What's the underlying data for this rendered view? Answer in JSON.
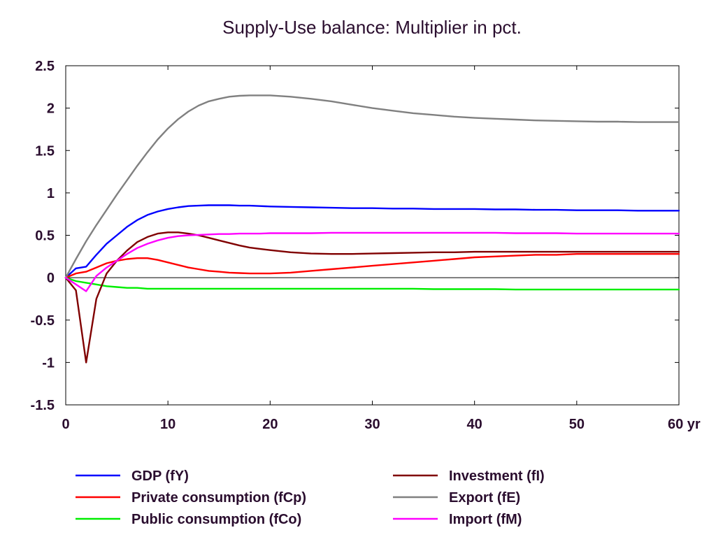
{
  "chart_data": {
    "type": "line",
    "title": "Supply-Use balance: Multiplier in pct.",
    "xlabel": "",
    "ylabel": "",
    "x_unit_suffix": "yr",
    "xlim": [
      0,
      60
    ],
    "ylim": [
      -1.5,
      2.5
    ],
    "xticks": [
      0,
      10,
      20,
      30,
      40,
      50,
      60
    ],
    "xtick_labels": [
      "0",
      "10",
      "20",
      "30",
      "40",
      "50",
      "60 yr"
    ],
    "yticks": [
      2.5,
      2,
      1.5,
      1,
      0.5,
      0,
      -0.5,
      -1,
      -1.5
    ],
    "ytick_labels": [
      "2.5",
      "2",
      "1.5",
      "1",
      "0.5",
      "0",
      "-0.5",
      "-1",
      "-1.5"
    ],
    "zero_line": true,
    "grid": false,
    "legend_position": "bottom",
    "x": [
      0,
      1,
      2,
      3,
      4,
      5,
      6,
      7,
      8,
      9,
      10,
      11,
      12,
      13,
      14,
      15,
      16,
      17,
      18,
      19,
      20,
      22,
      24,
      26,
      28,
      30,
      32,
      34,
      36,
      38,
      40,
      42,
      44,
      46,
      48,
      50,
      52,
      54,
      56,
      58,
      60
    ],
    "series": [
      {
        "name": "GDP (fY)",
        "color": "#0000ff",
        "values": [
          0,
          0.11,
          0.13,
          0.27,
          0.4,
          0.5,
          0.6,
          0.68,
          0.74,
          0.78,
          0.81,
          0.83,
          0.845,
          0.85,
          0.855,
          0.855,
          0.855,
          0.85,
          0.85,
          0.845,
          0.84,
          0.835,
          0.83,
          0.825,
          0.82,
          0.82,
          0.815,
          0.815,
          0.81,
          0.81,
          0.81,
          0.805,
          0.805,
          0.8,
          0.8,
          0.795,
          0.795,
          0.795,
          0.79,
          0.79,
          0.79
        ]
      },
      {
        "name": "Private consumption (fCp)",
        "color": "#ff0000",
        "values": [
          0,
          0.05,
          0.07,
          0.12,
          0.17,
          0.2,
          0.22,
          0.23,
          0.23,
          0.21,
          0.18,
          0.15,
          0.12,
          0.1,
          0.08,
          0.07,
          0.06,
          0.055,
          0.05,
          0.05,
          0.05,
          0.06,
          0.08,
          0.1,
          0.12,
          0.14,
          0.16,
          0.18,
          0.2,
          0.22,
          0.24,
          0.25,
          0.26,
          0.27,
          0.27,
          0.28,
          0.28,
          0.28,
          0.28,
          0.28,
          0.28
        ]
      },
      {
        "name": "Public consumption (fCo)",
        "color": "#00ee00",
        "values": [
          0,
          -0.04,
          -0.06,
          -0.08,
          -0.1,
          -0.11,
          -0.12,
          -0.12,
          -0.13,
          -0.13,
          -0.13,
          -0.13,
          -0.13,
          -0.13,
          -0.13,
          -0.13,
          -0.13,
          -0.13,
          -0.13,
          -0.13,
          -0.13,
          -0.13,
          -0.13,
          -0.13,
          -0.13,
          -0.13,
          -0.13,
          -0.13,
          -0.135,
          -0.135,
          -0.135,
          -0.135,
          -0.14,
          -0.14,
          -0.14,
          -0.14,
          -0.14,
          -0.14,
          -0.14,
          -0.14,
          -0.14
        ]
      },
      {
        "name": "Investment (fI)",
        "color": "#800000",
        "values": [
          0,
          -0.15,
          -1.0,
          -0.25,
          0.05,
          0.2,
          0.32,
          0.42,
          0.48,
          0.52,
          0.535,
          0.535,
          0.52,
          0.5,
          0.47,
          0.44,
          0.41,
          0.38,
          0.355,
          0.34,
          0.325,
          0.3,
          0.285,
          0.28,
          0.28,
          0.285,
          0.29,
          0.295,
          0.3,
          0.3,
          0.305,
          0.305,
          0.305,
          0.305,
          0.305,
          0.305,
          0.305,
          0.305,
          0.305,
          0.305,
          0.305
        ]
      },
      {
        "name": "Export (fE)",
        "color": "#808080",
        "values": [
          0,
          0.22,
          0.43,
          0.62,
          0.8,
          0.98,
          1.15,
          1.32,
          1.48,
          1.63,
          1.76,
          1.87,
          1.96,
          2.03,
          2.08,
          2.11,
          2.135,
          2.145,
          2.15,
          2.15,
          2.15,
          2.135,
          2.11,
          2.08,
          2.04,
          2.0,
          1.97,
          1.94,
          1.92,
          1.9,
          1.885,
          1.875,
          1.865,
          1.855,
          1.85,
          1.845,
          1.84,
          1.84,
          1.835,
          1.835,
          1.835
        ]
      },
      {
        "name": "Import (fM)",
        "color": "#ff00ff",
        "values": [
          0,
          -0.08,
          -0.16,
          0.02,
          0.12,
          0.2,
          0.28,
          0.35,
          0.4,
          0.44,
          0.47,
          0.49,
          0.5,
          0.505,
          0.51,
          0.515,
          0.515,
          0.52,
          0.52,
          0.52,
          0.525,
          0.525,
          0.525,
          0.53,
          0.53,
          0.53,
          0.53,
          0.53,
          0.53,
          0.53,
          0.53,
          0.53,
          0.525,
          0.525,
          0.525,
          0.52,
          0.52,
          0.52,
          0.52,
          0.52,
          0.52
        ]
      }
    ]
  }
}
